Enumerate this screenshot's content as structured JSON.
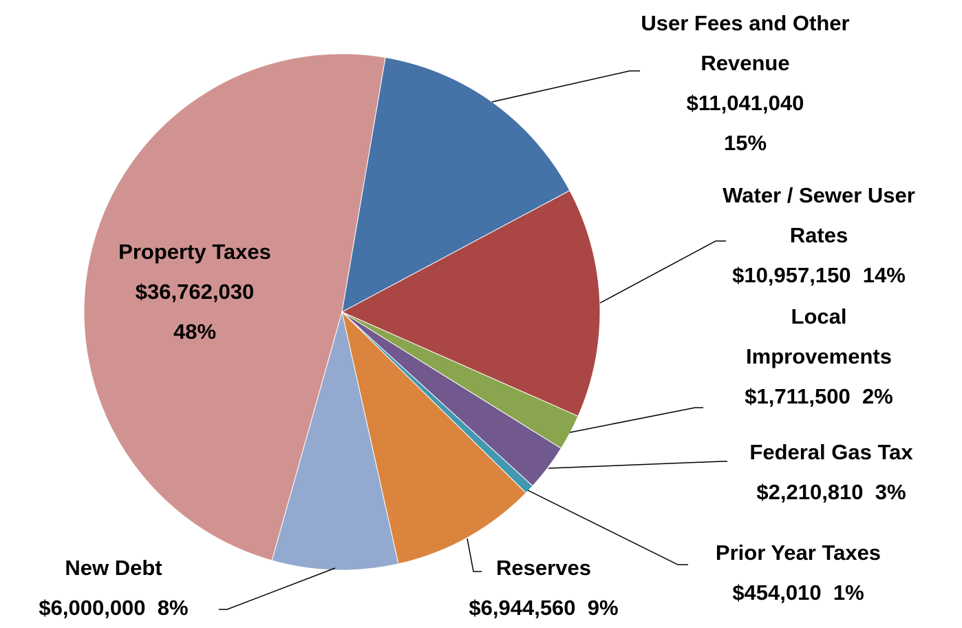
{
  "chart_data": {
    "type": "pie",
    "categories": [
      "User Fees and Other Revenue",
      "Water / Sewer User Rates",
      "Local Improvements",
      "Federal Gas Tax",
      "Prior Year Taxes",
      "Reserves",
      "New Debt",
      "Property Taxes"
    ],
    "values": [
      11041040,
      10957150,
      1711500,
      2210810,
      454010,
      6944560,
      6000000,
      36762030
    ],
    "value_labels": [
      "$11,041,040",
      "$10,957,150",
      "$1,711,500",
      "$2,210,810",
      "$454,010",
      "$6,944,560",
      "$6,000,000",
      "$36,762,030"
    ],
    "percent_labels": [
      "15%",
      "14%",
      "2%",
      "3%",
      "1%",
      "9%",
      "8%",
      "48%"
    ],
    "colors": [
      "#4572a7",
      "#aa4643",
      "#89a54e",
      "#71588f",
      "#4198af",
      "#db843d",
      "#93a9cf",
      "#d19392"
    ]
  }
}
